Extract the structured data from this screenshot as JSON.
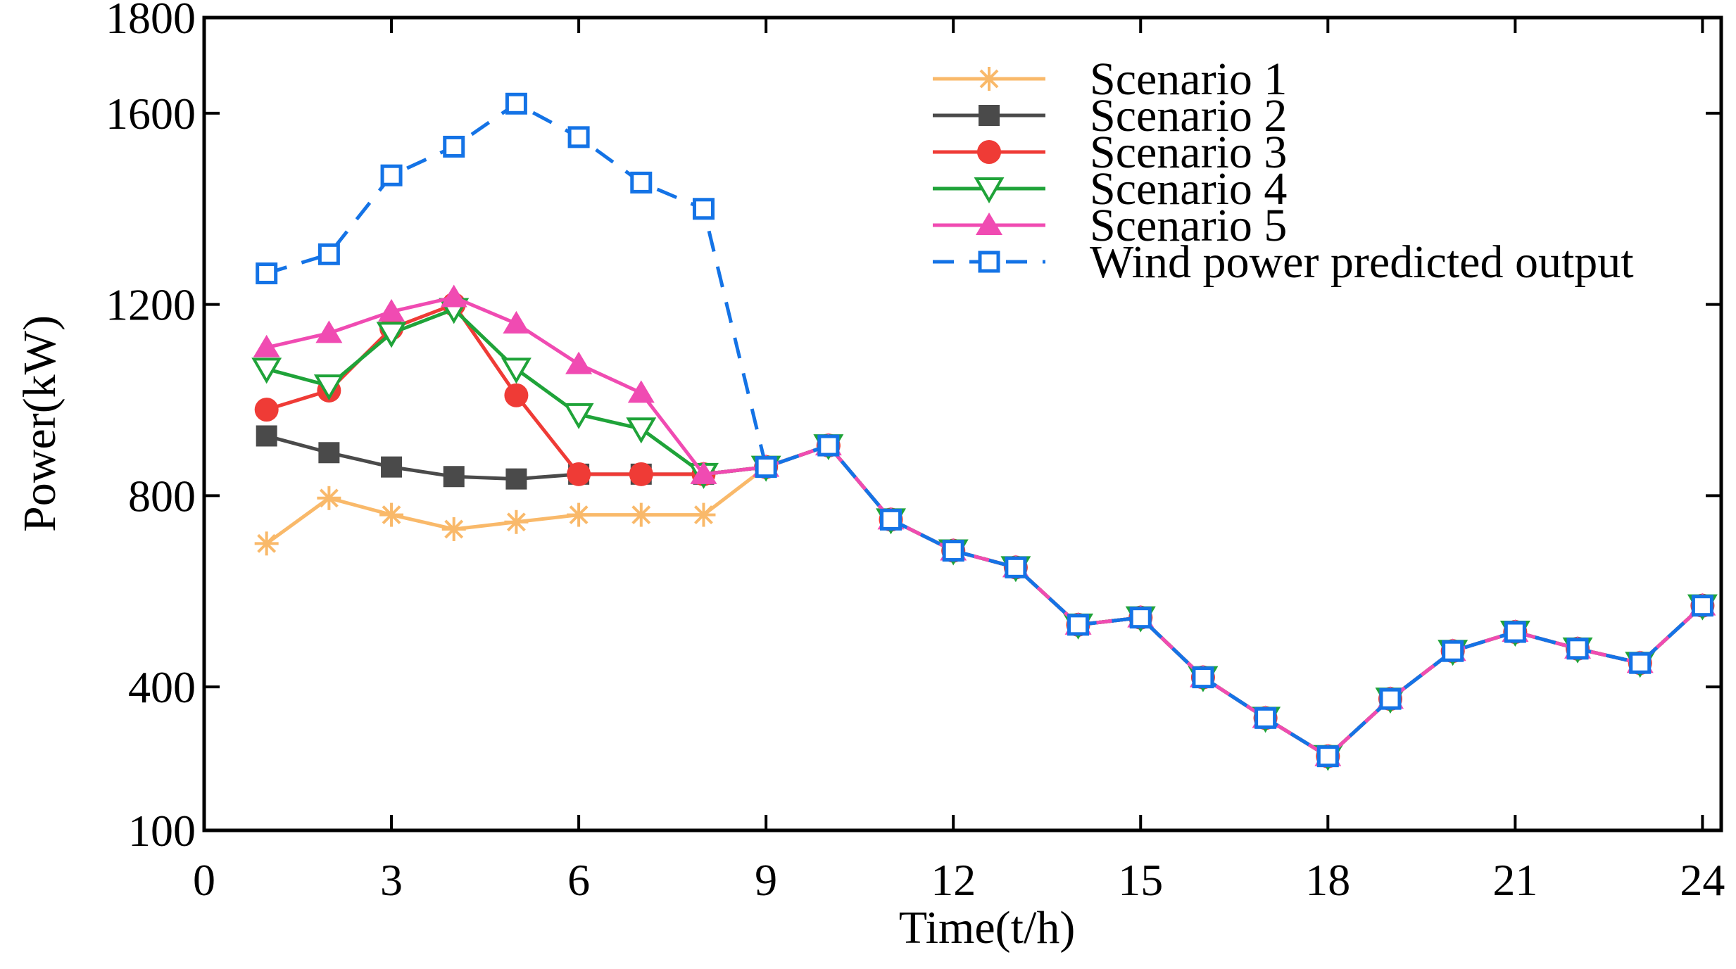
{
  "chart_data": {
    "type": "line",
    "title": "",
    "xlabel": "Time(t/h)",
    "ylabel": "Power(kW)",
    "xlim": [
      0,
      24.3
    ],
    "ylim": [
      100,
      1800
    ],
    "xticks": [
      0,
      3,
      6,
      9,
      12,
      15,
      18,
      21,
      24
    ],
    "yticks": [
      100,
      400,
      800,
      1200,
      1600,
      1800
    ],
    "x": [
      1,
      2,
      3,
      4,
      5,
      6,
      7,
      8,
      9,
      10,
      11,
      12,
      13,
      14,
      15,
      16,
      17,
      18,
      19,
      20,
      21,
      22,
      23,
      24
    ],
    "legend_position": "top-right",
    "series": [
      {
        "name": "Scenario 1",
        "color": "#F9B96A",
        "marker": "asterisk",
        "line": "solid",
        "values": [
          700,
          795,
          760,
          730,
          745,
          760,
          760,
          760,
          860,
          905,
          750,
          685,
          650,
          530,
          545,
          420,
          335,
          255,
          375,
          475,
          515,
          480,
          450,
          570
        ]
      },
      {
        "name": "Scenario 2",
        "color": "#4A4A4A",
        "marker": "square-filled",
        "line": "solid",
        "values": [
          925,
          890,
          860,
          840,
          835,
          845,
          845,
          845,
          860,
          905,
          750,
          685,
          650,
          530,
          545,
          420,
          335,
          255,
          375,
          475,
          515,
          480,
          450,
          570
        ]
      },
      {
        "name": "Scenario 3",
        "color": "#EF3B36",
        "marker": "circle-filled",
        "line": "solid",
        "values": [
          980,
          1020,
          1150,
          1200,
          1010,
          845,
          845,
          845,
          860,
          905,
          750,
          685,
          650,
          530,
          545,
          420,
          335,
          255,
          375,
          475,
          515,
          480,
          450,
          570
        ]
      },
      {
        "name": "Scenario 4",
        "color": "#1FA339",
        "marker": "triangle-down-open",
        "line": "solid",
        "values": [
          1065,
          1030,
          1140,
          1190,
          1065,
          970,
          940,
          845,
          860,
          905,
          750,
          685,
          650,
          530,
          545,
          420,
          335,
          255,
          375,
          475,
          515,
          480,
          450,
          570
        ]
      },
      {
        "name": "Scenario 5",
        "color": "#F04BB2",
        "marker": "triangle-up-filled",
        "line": "solid",
        "values": [
          1110,
          1140,
          1185,
          1215,
          1160,
          1075,
          1015,
          845,
          860,
          905,
          750,
          685,
          650,
          530,
          545,
          420,
          335,
          255,
          375,
          475,
          515,
          480,
          450,
          570
        ]
      },
      {
        "name": "Wind power predicted output",
        "color": "#1473E6",
        "marker": "square-open",
        "line": "dashed",
        "values": [
          1265,
          1305,
          1470,
          1530,
          1620,
          1550,
          1455,
          1400,
          860,
          905,
          750,
          685,
          650,
          530,
          545,
          420,
          335,
          255,
          375,
          475,
          515,
          480,
          450,
          570
        ]
      }
    ]
  }
}
